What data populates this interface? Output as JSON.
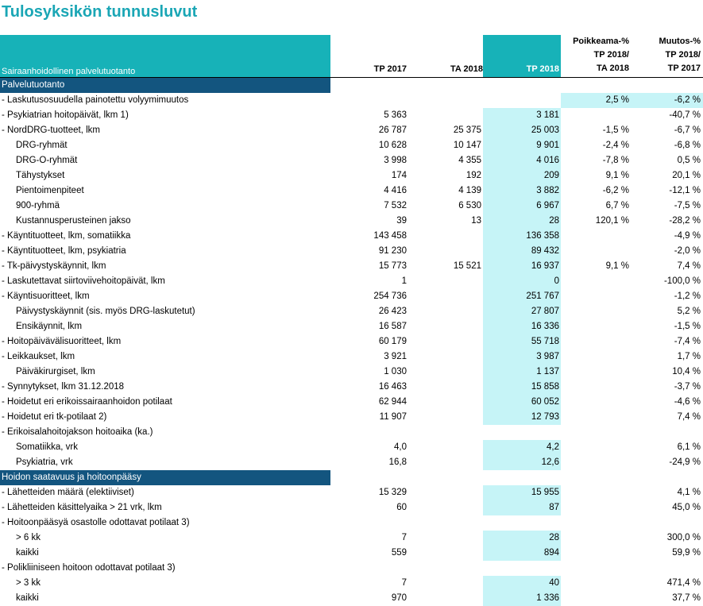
{
  "title": "Tulosyksikön tunnusluvut",
  "header": {
    "label": "Sairaanhoidollinen palvelutuotanto",
    "col1": "TP 2017",
    "col2": "TA 2018",
    "col3": "TP 2018",
    "col4_lines": [
      "Poikkeama-%",
      "TP 2018/",
      "TA 2018"
    ],
    "col5_lines": [
      "Muutos-%",
      "TP 2018/",
      "TP 2017"
    ]
  },
  "sections": [
    {
      "title": "Palvelutuotanto",
      "rows": [
        {
          "label": "- Laskutusosuudella painotettu volyymimuutos",
          "indent": false,
          "tp2017": "",
          "ta2018": "",
          "tp2018": "",
          "dev": "2,5 %",
          "chg": "-6,2 %",
          "hl": "devchg"
        },
        {
          "label": "- Psykiatrian hoitopäivät, lkm 1)",
          "indent": false,
          "tp2017": "5 363",
          "ta2018": "",
          "tp2018": "3 181",
          "dev": "",
          "chg": "-40,7 %"
        },
        {
          "label": "- NordDRG-tuotteet, lkm",
          "indent": false,
          "tp2017": "26 787",
          "ta2018": "25 375",
          "tp2018": "25 003",
          "dev": "-1,5 %",
          "chg": "-6,7 %"
        },
        {
          "label": "DRG-ryhmät",
          "indent": true,
          "tp2017": "10 628",
          "ta2018": "10 147",
          "tp2018": "9 901",
          "dev": "-2,4 %",
          "chg": "-6,8 %"
        },
        {
          "label": "DRG-O-ryhmät",
          "indent": true,
          "tp2017": "3 998",
          "ta2018": "4 355",
          "tp2018": "4 016",
          "dev": "-7,8 %",
          "chg": "0,5 %"
        },
        {
          "label": "Tähystykset",
          "indent": true,
          "tp2017": "174",
          "ta2018": "192",
          "tp2018": "209",
          "dev": "9,1 %",
          "chg": "20,1 %"
        },
        {
          "label": "Pientoimenpiteet",
          "indent": true,
          "tp2017": "4 416",
          "ta2018": "4 139",
          "tp2018": "3 882",
          "dev": "-6,2 %",
          "chg": "-12,1 %"
        },
        {
          "label": "900-ryhmä",
          "indent": true,
          "tp2017": "7 532",
          "ta2018": "6 530",
          "tp2018": "6 967",
          "dev": "6,7 %",
          "chg": "-7,5 %"
        },
        {
          "label": "Kustannusperusteinen jakso",
          "indent": true,
          "tp2017": "39",
          "ta2018": "13",
          "tp2018": "28",
          "dev": "120,1 %",
          "chg": "-28,2 %"
        },
        {
          "label": "- Käyntituotteet, lkm, somatiikka",
          "indent": false,
          "tp2017": "143 458",
          "ta2018": "",
          "tp2018": "136 358",
          "dev": "",
          "chg": "-4,9 %"
        },
        {
          "label": "- Käyntituotteet, lkm, psykiatria",
          "indent": false,
          "tp2017": "91 230",
          "ta2018": "",
          "tp2018": "89 432",
          "dev": "",
          "chg": "-2,0 %"
        },
        {
          "label": "- Tk-päivystyskäynnit, lkm",
          "indent": false,
          "tp2017": "15 773",
          "ta2018": "15 521",
          "tp2018": "16 937",
          "dev": "9,1 %",
          "chg": "7,4 %"
        },
        {
          "label": "- Laskutettavat siirtoviivehoitopäivät, lkm",
          "indent": false,
          "tp2017": "1",
          "ta2018": "",
          "tp2018": "0",
          "dev": "",
          "chg": "-100,0 %"
        },
        {
          "label": "- Käyntisuoritteet, lkm",
          "indent": false,
          "tp2017": "254 736",
          "ta2018": "",
          "tp2018": "251 767",
          "dev": "",
          "chg": "-1,2 %"
        },
        {
          "label": "Päivystyskäynnit (sis. myös DRG-laskutetut)",
          "indent": true,
          "tp2017": "26 423",
          "ta2018": "",
          "tp2018": "27 807",
          "dev": "",
          "chg": "5,2 %"
        },
        {
          "label": "Ensikäynnit, lkm",
          "indent": true,
          "tp2017": "16 587",
          "ta2018": "",
          "tp2018": "16 336",
          "dev": "",
          "chg": "-1,5 %"
        },
        {
          "label": "- Hoitopäivävälisuoritteet, lkm",
          "indent": false,
          "tp2017": "60 179",
          "ta2018": "",
          "tp2018": "55 718",
          "dev": "",
          "chg": "-7,4 %"
        },
        {
          "label": "- Leikkaukset, lkm",
          "indent": false,
          "tp2017": "3 921",
          "ta2018": "",
          "tp2018": "3 987",
          "dev": "",
          "chg": "1,7 %"
        },
        {
          "label": "Päiväkirurgiset, lkm",
          "indent": true,
          "tp2017": "1 030",
          "ta2018": "",
          "tp2018": "1 137",
          "dev": "",
          "chg": "10,4 %"
        },
        {
          "label": "- Synnytykset, lkm 31.12.2018",
          "indent": false,
          "tp2017": "16 463",
          "ta2018": "",
          "tp2018": "15 858",
          "dev": "",
          "chg": "-3,7 %"
        },
        {
          "label": "- Hoidetut eri erikoissairaanhoidon potilaat",
          "indent": false,
          "tp2017": "62 944",
          "ta2018": "",
          "tp2018": "60 052",
          "dev": "",
          "chg": "-4,6 %"
        },
        {
          "label": "- Hoidetut eri tk-potilaat 2)",
          "indent": false,
          "tp2017": "11 907",
          "ta2018": "",
          "tp2018": "12 793",
          "dev": "",
          "chg": "7,4 %"
        },
        {
          "label": "- Erikoisalahoitojakson hoitoaika (ka.)",
          "indent": false,
          "tp2017": "",
          "ta2018": "",
          "tp2018": "",
          "dev": "",
          "chg": "",
          "nobg": true
        },
        {
          "label": "Somatiikka, vrk",
          "indent": true,
          "tp2017": "4,0",
          "ta2018": "",
          "tp2018": "4,2",
          "dev": "",
          "chg": "6,1 %"
        },
        {
          "label": "Psykiatria, vrk",
          "indent": true,
          "tp2017": "16,8",
          "ta2018": "",
          "tp2018": "12,6",
          "dev": "",
          "chg": "-24,9 %"
        }
      ]
    },
    {
      "title": "Hoidon saatavuus ja hoitoonpääsy",
      "rows": [
        {
          "label": "- Lähetteiden määrä (elektiiviset)",
          "indent": false,
          "tp2017": "15 329",
          "ta2018": "",
          "tp2018": "15 955",
          "dev": "",
          "chg": "4,1 %"
        },
        {
          "label": "- Lähetteiden käsittelyaika > 21 vrk, lkm",
          "indent": false,
          "tp2017": "60",
          "ta2018": "",
          "tp2018": "87",
          "dev": "",
          "chg": "45,0 %"
        },
        {
          "label": "- Hoitoonpääsyä osastolle odottavat potilaat 3)",
          "indent": false,
          "tp2017": "",
          "ta2018": "",
          "tp2018": "",
          "dev": "",
          "chg": "",
          "nobg": true
        },
        {
          "label": "> 6 kk",
          "indent": true,
          "tp2017": "7",
          "ta2018": "",
          "tp2018": "28",
          "dev": "",
          "chg": "300,0 %"
        },
        {
          "label": "kaikki",
          "indent": true,
          "tp2017": "559",
          "ta2018": "",
          "tp2018": "894",
          "dev": "",
          "chg": "59,9 %"
        },
        {
          "label": "- Polikliiniseen hoitoon odottavat potilaat 3)",
          "indent": false,
          "tp2017": "",
          "ta2018": "",
          "tp2018": "",
          "dev": "",
          "chg": "",
          "nobg": true
        },
        {
          "label": "> 3 kk",
          "indent": true,
          "tp2017": "7",
          "ta2018": "",
          "tp2018": "40",
          "dev": "",
          "chg": "471,4 %"
        },
        {
          "label": "kaikki",
          "indent": true,
          "tp2017": "970",
          "ta2018": "",
          "tp2018": "1 336",
          "dev": "",
          "chg": "37,7 %"
        }
      ]
    }
  ]
}
